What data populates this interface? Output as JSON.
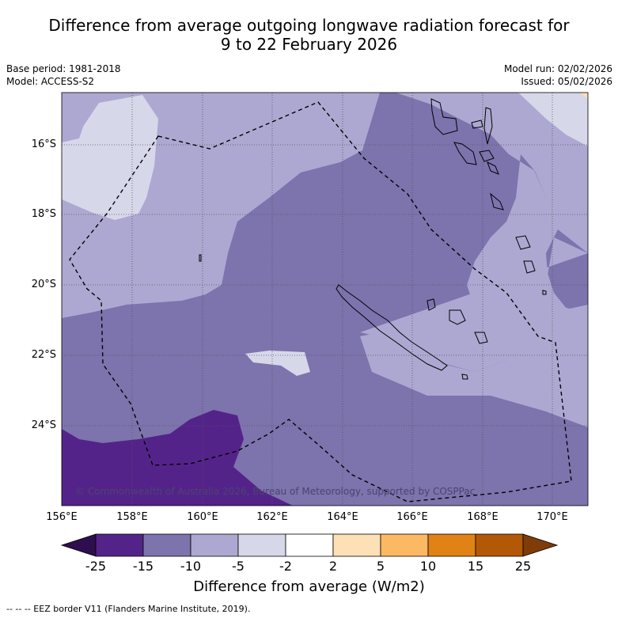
{
  "title": {
    "line1": "Difference from average outgoing longwave radiation forecast for",
    "line2": "9 to 22 February 2026"
  },
  "meta": {
    "base_period": "Base period: 1981-2018",
    "model": "Model: ACCESS-S2",
    "model_run": "Model run: 02/02/2026",
    "issued": "Issued: 05/02/2026"
  },
  "axes": {
    "y_ticks": [
      "16°S",
      "18°S",
      "20°S",
      "22°S",
      "24°S"
    ],
    "x_ticks": [
      "156°E",
      "158°E",
      "160°E",
      "162°E",
      "164°E",
      "166°E",
      "168°E",
      "170°E"
    ]
  },
  "copyright": "© Commonwealth of Australia 2026, Bureau of Meteorology, supported by COSPPac",
  "colorbar": {
    "ticks": [
      "-25",
      "-15",
      "-10",
      "-5",
      "-2",
      "2",
      "5",
      "10",
      "15",
      "25"
    ],
    "colors": [
      "#2e0e4e",
      "#54238a",
      "#7d73ad",
      "#ada8d1",
      "#d7d7ea",
      "#ffffff",
      "#fde0b6",
      "#fdb863",
      "#e08215",
      "#b35806",
      "#7f3b08"
    ],
    "label": "Difference from average (W/m2)"
  },
  "legend": "--  --  -- EEZ border V11 (Flanders Marine Institute, 2019)."
}
